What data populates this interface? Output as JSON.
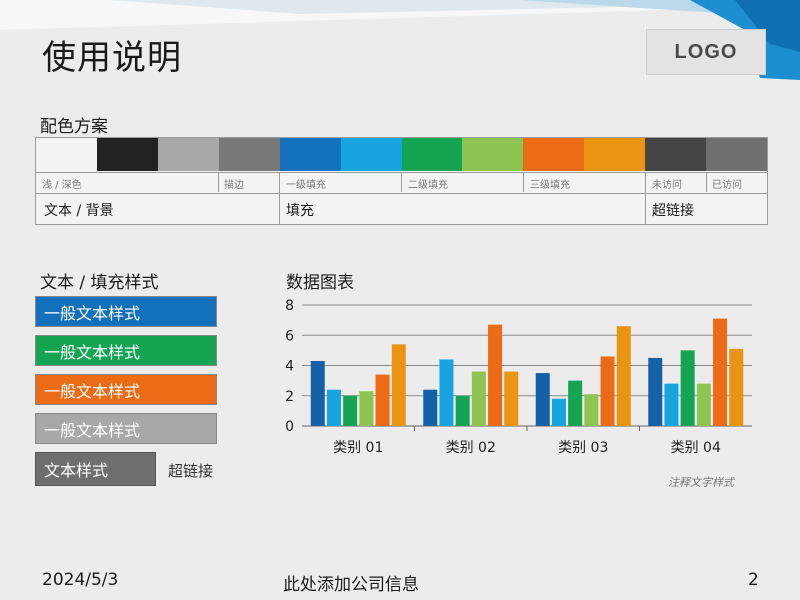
{
  "slide": {
    "title": "使用说明",
    "logo": "LOGO"
  },
  "palette": {
    "title": "配色方案",
    "swatches": [
      "#f3f3f3",
      "#222222",
      "#a8a8a8",
      "#787878",
      "#1370bb",
      "#17a4e0",
      "#15a452",
      "#8ec452",
      "#ec6b16",
      "#e99413",
      "#454545",
      "#707070"
    ],
    "labels": [
      "浅 / 深色",
      "描边",
      "一级填充",
      "二级填充",
      "三级填充",
      "未访问",
      "已访问"
    ],
    "categories": [
      "文本 / 背景",
      "填充",
      "超链接"
    ]
  },
  "styles": {
    "title": "文本 / 填充样式",
    "items": [
      {
        "label": "一般文本样式",
        "color": "#1370bb"
      },
      {
        "label": "一般文本样式",
        "color": "#15a452"
      },
      {
        "label": "一般文本样式",
        "color": "#ec6b16"
      },
      {
        "label": "一般文本样式",
        "color": "#a8a8a8"
      }
    ],
    "text_style": "文本样式",
    "hyperlink": "超链接"
  },
  "chart": {
    "title": "数据图表",
    "annotation": "注释文字样式"
  },
  "chart_data": {
    "type": "bar",
    "categories": [
      "类别 01",
      "类别 02",
      "类别 03",
      "类别 04"
    ],
    "series": [
      {
        "values": [
          4.3,
          2.4,
          3.5,
          4.5
        ],
        "color": "#1561a8"
      },
      {
        "values": [
          2.4,
          4.4,
          1.8,
          2.8
        ],
        "color": "#17a4e0"
      },
      {
        "values": [
          2.0,
          2.0,
          3.0,
          5.0
        ],
        "color": "#15a452"
      },
      {
        "values": [
          2.3,
          3.6,
          2.1,
          2.8
        ],
        "color": "#8ec452"
      },
      {
        "values": [
          3.4,
          6.7,
          4.6,
          7.1
        ],
        "color": "#ec6b16"
      },
      {
        "values": [
          5.4,
          3.6,
          6.6,
          5.1
        ],
        "color": "#e99413"
      }
    ],
    "yticks": [
      "0",
      "2",
      "4",
      "6",
      "8"
    ],
    "ylim": [
      0,
      8
    ],
    "grid": true
  },
  "footer": {
    "date": "2024/5/3",
    "company": "此处添加公司信息",
    "page": "2"
  }
}
